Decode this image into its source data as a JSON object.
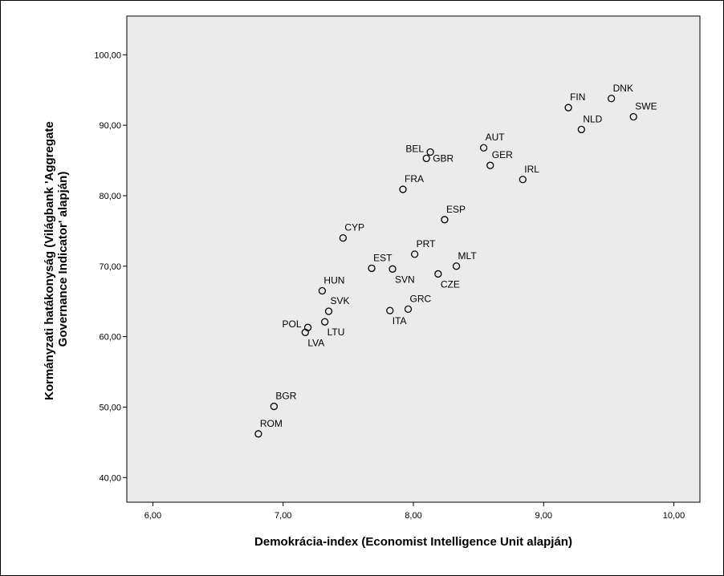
{
  "chart_data": {
    "type": "scatter",
    "xlabel": "Demokrácia-index (Economist Intelligence Unit alapján)",
    "ylabel_lines": [
      "Kormányzati hatákonyság (Világbank 'Aggregate",
      "Governance Indicator' alapján)"
    ],
    "xlim": [
      5.8,
      10.2
    ],
    "ylim": [
      36.5,
      105.5
    ],
    "xticks": [
      {
        "value": 6,
        "label": "6,00"
      },
      {
        "value": 7,
        "label": "7,00"
      },
      {
        "value": 8,
        "label": "8,00"
      },
      {
        "value": 9,
        "label": "9,00"
      },
      {
        "value": 10,
        "label": "10,00"
      }
    ],
    "yticks": [
      {
        "value": 40,
        "label": "40,00"
      },
      {
        "value": 50,
        "label": "50,00"
      },
      {
        "value": 60,
        "label": "60,00"
      },
      {
        "value": 70,
        "label": "70,00"
      },
      {
        "value": 80,
        "label": "80,00"
      },
      {
        "value": 90,
        "label": "90,00"
      },
      {
        "value": 100,
        "label": "100,00"
      }
    ],
    "grid": false,
    "plot_background": "#ebebeb",
    "marker": "open-circle",
    "points": [
      {
        "label": "DNK",
        "x": 9.52,
        "y": 93.8,
        "label_pos": "above"
      },
      {
        "label": "FIN",
        "x": 9.19,
        "y": 92.5,
        "label_pos": "above"
      },
      {
        "label": "SWE",
        "x": 9.69,
        "y": 91.2,
        "label_pos": "above"
      },
      {
        "label": "NLD",
        "x": 9.29,
        "y": 89.4,
        "label_pos": "above"
      },
      {
        "label": "AUT",
        "x": 8.54,
        "y": 86.8,
        "label_pos": "above"
      },
      {
        "label": "BEL",
        "x": 8.13,
        "y": 86.2,
        "label_pos": "left"
      },
      {
        "label": "GBR",
        "x": 8.1,
        "y": 85.3,
        "label_pos": "right"
      },
      {
        "label": "GER",
        "x": 8.59,
        "y": 84.3,
        "label_pos": "above"
      },
      {
        "label": "IRL",
        "x": 8.84,
        "y": 82.3,
        "label_pos": "above"
      },
      {
        "label": "FRA",
        "x": 7.92,
        "y": 80.9,
        "label_pos": "above"
      },
      {
        "label": "ESP",
        "x": 8.24,
        "y": 76.6,
        "label_pos": "above"
      },
      {
        "label": "CYP",
        "x": 7.46,
        "y": 74.0,
        "label_pos": "above"
      },
      {
        "label": "PRT",
        "x": 8.01,
        "y": 71.7,
        "label_pos": "above"
      },
      {
        "label": "MLT",
        "x": 8.33,
        "y": 70.0,
        "label_pos": "above"
      },
      {
        "label": "EST",
        "x": 7.68,
        "y": 69.7,
        "label_pos": "above"
      },
      {
        "label": "SVN",
        "x": 7.84,
        "y": 69.6,
        "label_pos": "below"
      },
      {
        "label": "CZE",
        "x": 8.19,
        "y": 68.9,
        "label_pos": "below"
      },
      {
        "label": "HUN",
        "x": 7.3,
        "y": 66.5,
        "label_pos": "above"
      },
      {
        "label": "GRC",
        "x": 7.96,
        "y": 63.9,
        "label_pos": "above"
      },
      {
        "label": "ITA",
        "x": 7.82,
        "y": 63.7,
        "label_pos": "below"
      },
      {
        "label": "SVK",
        "x": 7.35,
        "y": 63.6,
        "label_pos": "above"
      },
      {
        "label": "LTU",
        "x": 7.32,
        "y": 62.1,
        "label_pos": "below"
      },
      {
        "label": "POL",
        "x": 7.19,
        "y": 61.3,
        "label_pos": "left"
      },
      {
        "label": "LVA",
        "x": 7.17,
        "y": 60.6,
        "label_pos": "below"
      },
      {
        "label": "BGR",
        "x": 6.93,
        "y": 50.1,
        "label_pos": "above"
      },
      {
        "label": "ROM",
        "x": 6.81,
        "y": 46.2,
        "label_pos": "above"
      }
    ]
  }
}
